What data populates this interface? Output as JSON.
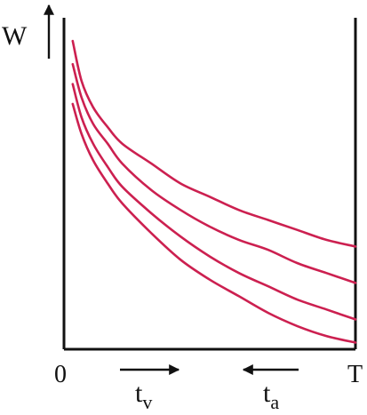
{
  "chart_data": {
    "type": "line",
    "title": "",
    "ylabel": "W",
    "x_start_label": "0",
    "x_end_label": "T",
    "x": [
      0.3,
      0.6,
      1.0,
      1.5,
      2.0,
      3.0,
      4.0,
      5.0,
      6.0,
      7.0,
      8.0,
      9.0,
      10.0
    ],
    "series": [
      {
        "values": [
          9.3,
          8.1,
          7.3,
          6.7,
          6.2,
          5.6,
          5.0,
          4.6,
          4.2,
          3.9,
          3.6,
          3.3,
          3.1
        ]
      },
      {
        "values": [
          8.6,
          7.6,
          6.8,
          6.2,
          5.6,
          4.8,
          4.2,
          3.7,
          3.3,
          3.0,
          2.6,
          2.3,
          2.0
        ]
      },
      {
        "values": [
          8.0,
          7.0,
          6.2,
          5.5,
          4.9,
          4.1,
          3.4,
          2.8,
          2.3,
          1.9,
          1.5,
          1.2,
          0.9
        ]
      },
      {
        "values": [
          7.4,
          6.5,
          5.7,
          5.0,
          4.4,
          3.5,
          2.7,
          2.1,
          1.6,
          1.1,
          0.7,
          0.4,
          0.2
        ]
      }
    ],
    "xlim": [
      0,
      10
    ],
    "ylim": [
      0,
      10
    ],
    "grid": false,
    "line_color": "#cc2050",
    "axis_color": "#111111",
    "annotations": [
      {
        "text": "t",
        "subscript": "v",
        "arrow_direction": "right"
      },
      {
        "text": "t",
        "subscript": "a",
        "arrow_direction": "left"
      }
    ]
  }
}
